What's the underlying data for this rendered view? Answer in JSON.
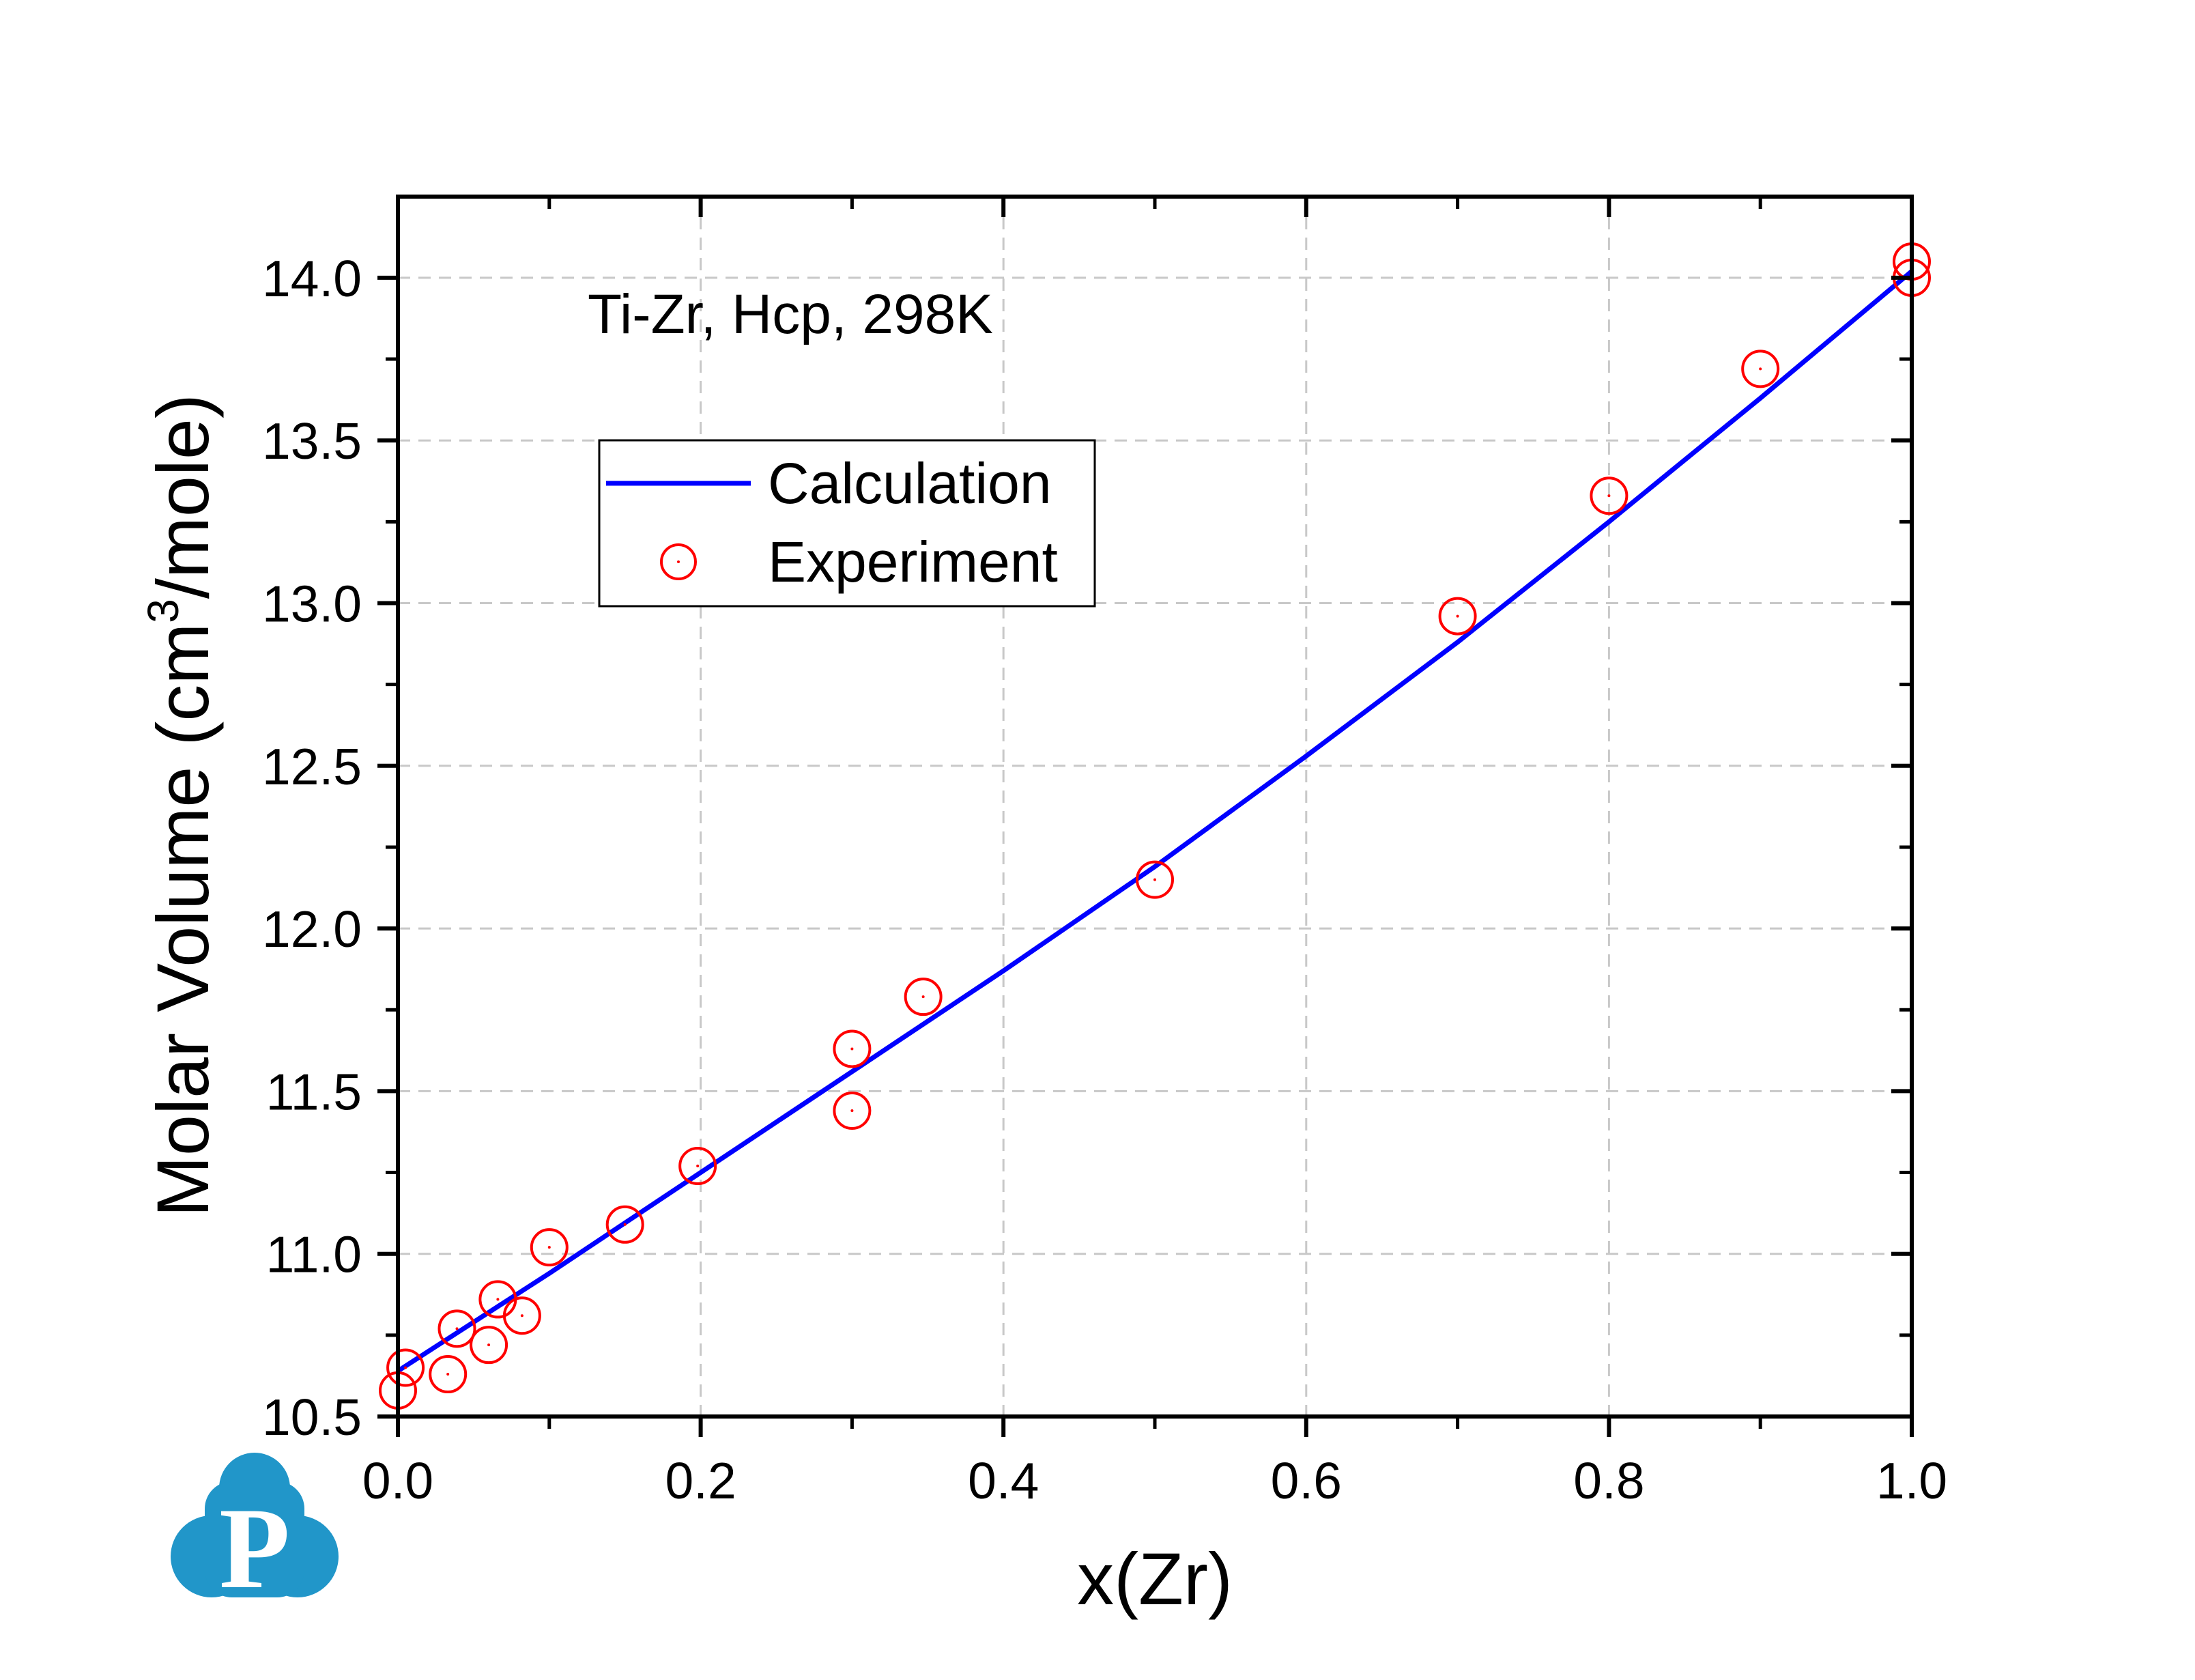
{
  "chart_data": {
    "type": "scatter",
    "annotation": "Ti-Zr, Hcp, 298K",
    "xlabel": "x(Zr)",
    "ylabel_main": "Molar Volume (cm",
    "ylabel_sup": "3",
    "ylabel_tail": "/mole)",
    "xlim": [
      0.0,
      1.0
    ],
    "ylim": [
      10.5,
      14.25
    ],
    "xticks": [
      "0.0",
      "0.2",
      "0.4",
      "0.6",
      "0.8",
      "1.0"
    ],
    "yticks": [
      "10.5",
      "11.0",
      "11.5",
      "12.0",
      "12.5",
      "13.0",
      "13.5",
      "14.0"
    ],
    "grid": true,
    "legend_position": "upper-left",
    "series": [
      {
        "name": "Calculation",
        "kind": "line",
        "color": "#0000ff",
        "x": [
          0.0,
          0.1,
          0.2,
          0.3,
          0.4,
          0.5,
          0.6,
          0.7,
          0.8,
          0.9,
          1.0
        ],
        "y": [
          10.64,
          10.94,
          11.25,
          11.56,
          11.87,
          12.19,
          12.53,
          12.88,
          13.25,
          13.63,
          14.02
        ]
      },
      {
        "name": "Experiment",
        "kind": "scatter",
        "marker": "open-circle",
        "color": "#ff0000",
        "x": [
          0.0,
          0.005,
          0.033,
          0.039,
          0.06,
          0.066,
          0.082,
          0.1,
          0.15,
          0.198,
          0.3,
          0.3,
          0.347,
          0.5,
          0.7,
          0.8,
          0.9,
          1.0,
          1.0
        ],
        "y": [
          10.58,
          10.65,
          10.63,
          10.77,
          10.72,
          10.86,
          10.81,
          11.02,
          11.09,
          11.27,
          11.63,
          11.44,
          11.79,
          12.15,
          12.96,
          13.33,
          13.72,
          14.05,
          14.0
        ]
      }
    ]
  },
  "logo": {
    "letter": "P",
    "color": "#2196c9"
  }
}
